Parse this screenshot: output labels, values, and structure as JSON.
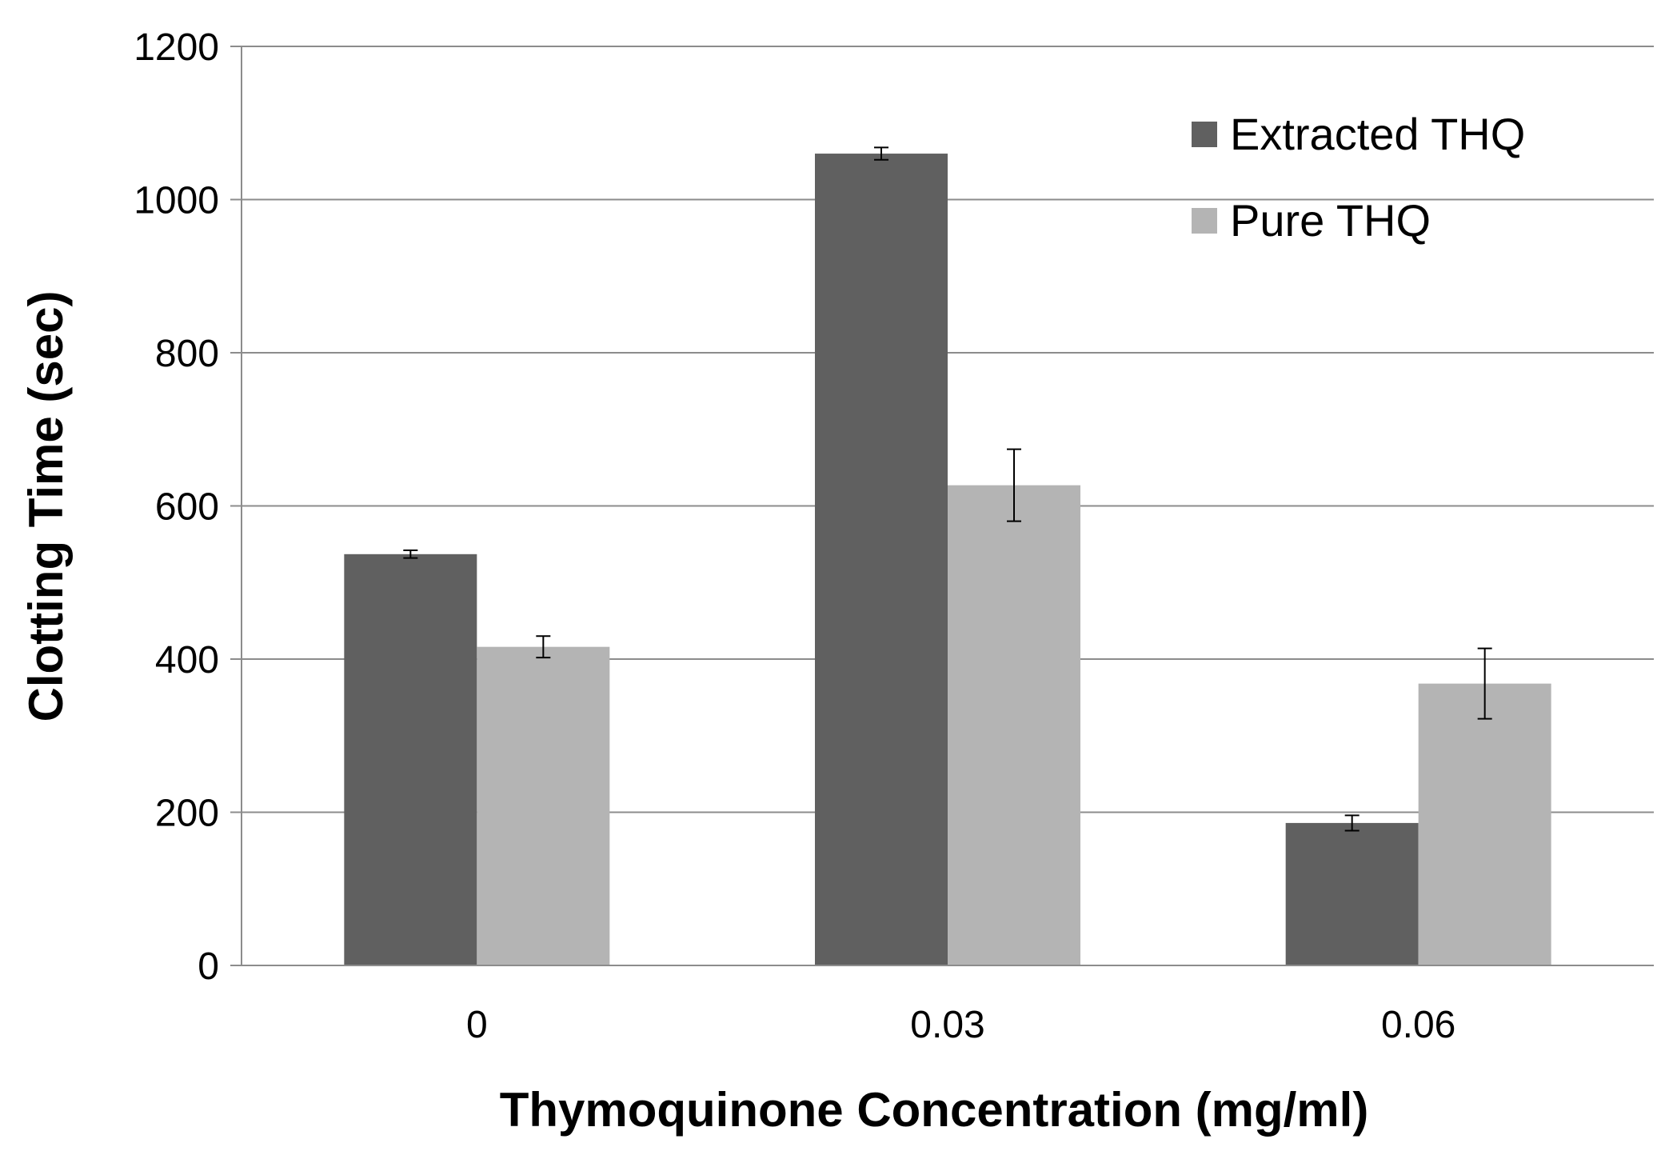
{
  "chart_data": {
    "type": "bar",
    "title": "",
    "xlabel": "Thymoquinone Concentration (mg/ml)",
    "ylabel": "Clotting Time (sec)",
    "categories": [
      "0",
      "0.03",
      "0.06"
    ],
    "ylim": [
      0,
      1200
    ],
    "yticks": [
      0,
      200,
      400,
      600,
      800,
      1000,
      1200
    ],
    "grid": true,
    "legend_position": "top-right",
    "series": [
      {
        "name": "Extracted THQ",
        "color": "#606060",
        "values": [
          537,
          1060,
          186
        ],
        "errors": [
          5,
          8,
          10
        ]
      },
      {
        "name": "Pure THQ",
        "color": "#b4b4b4",
        "values": [
          416,
          627,
          368
        ],
        "errors": [
          14,
          47,
          46
        ]
      }
    ]
  }
}
